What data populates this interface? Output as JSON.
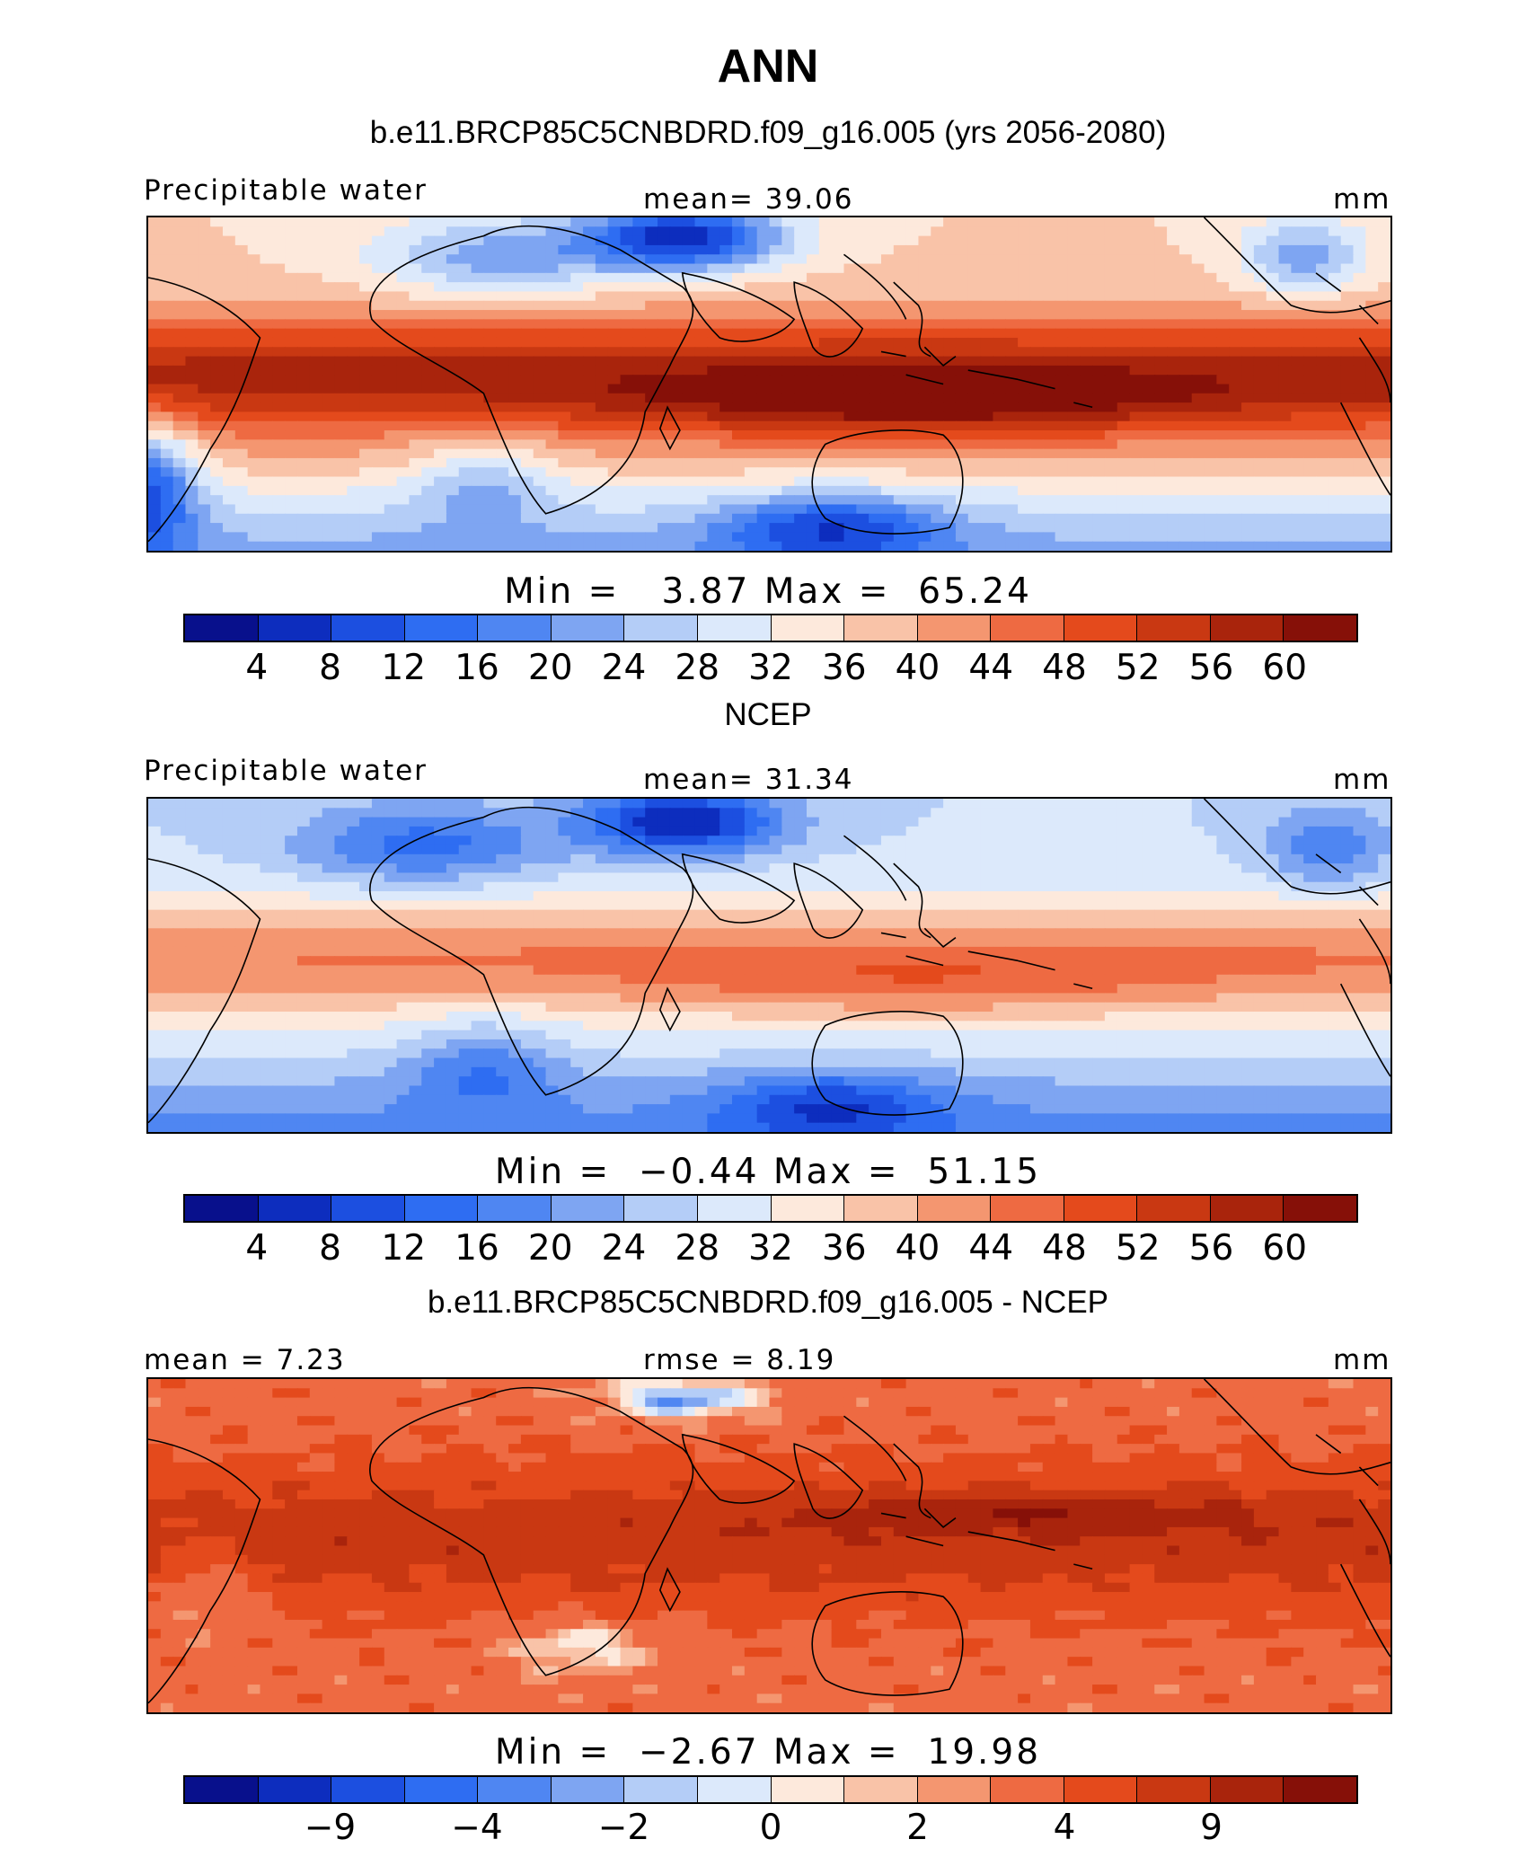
{
  "title": "ANN",
  "palette": [
    "#08108c",
    "#0d2dbe",
    "#1c4fe0",
    "#2e6df2",
    "#4f86f2",
    "#7ea5f2",
    "#b4cdf7",
    "#dce9fb",
    "#fde9dc",
    "#f9c3a8",
    "#f49670",
    "#ee6a42",
    "#e44a1c",
    "#c93812",
    "#a9240c",
    "#861008"
  ],
  "panels": [
    {
      "title": "b.e11.BRCP85C5CNBDRD.f09_g16.005 (yrs 2056-2080)",
      "left_label": "Precipitable water",
      "center_label": "mean=  39.06",
      "right_label": "mm",
      "min_max": "Min =   3.87 Max =  65.24",
      "field": "model",
      "tick_labels": [
        "4",
        "8",
        "12",
        "16",
        "20",
        "24",
        "28",
        "32",
        "36",
        "40",
        "44",
        "48",
        "52",
        "56",
        "60"
      ],
      "tick_slots": [
        1,
        2,
        3,
        4,
        5,
        6,
        7,
        8,
        9,
        10,
        11,
        12,
        13,
        14,
        15
      ],
      "stats": {
        "mean": 39.06,
        "min": 3.87,
        "max": 65.24,
        "units": "mm"
      }
    },
    {
      "title": "NCEP",
      "left_label": "Precipitable water",
      "center_label": "mean=  31.34",
      "right_label": "mm",
      "min_max": "Min =  −0.44 Max =  51.15",
      "field": "ncep",
      "tick_labels": [
        "4",
        "8",
        "12",
        "16",
        "20",
        "24",
        "28",
        "32",
        "36",
        "40",
        "44",
        "48",
        "52",
        "56",
        "60"
      ],
      "tick_slots": [
        1,
        2,
        3,
        4,
        5,
        6,
        7,
        8,
        9,
        10,
        11,
        12,
        13,
        14,
        15
      ],
      "stats": {
        "mean": 31.34,
        "min": -0.44,
        "max": 51.15,
        "units": "mm"
      }
    },
    {
      "title": "b.e11.BRCP85C5CNBDRD.f09_g16.005 - NCEP",
      "left_label": "mean =   7.23",
      "center_label": "rmse =   8.19",
      "right_label": "mm",
      "min_max": "Min =  −2.67 Max =  19.98",
      "field": "diff",
      "tick_labels": [
        "−9",
        "−4",
        "−2",
        "0",
        "2",
        "4",
        "9"
      ],
      "tick_slots": [
        2,
        4,
        6,
        8,
        10,
        12,
        14
      ],
      "stats": {
        "mean": 7.23,
        "rmse": 8.19,
        "min": -2.67,
        "max": 19.98,
        "units": "mm"
      }
    }
  ]
}
